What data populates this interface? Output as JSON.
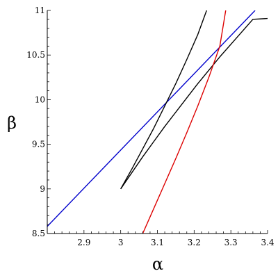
{
  "chart_data": {
    "type": "line",
    "xlabel": "α",
    "ylabel": "β",
    "xlim": [
      2.8,
      3.4
    ],
    "ylim": [
      8.5,
      11
    ],
    "grid": false,
    "x_ticks": [
      2.9,
      3.0,
      3.1,
      3.2,
      3.3,
      3.4
    ],
    "x_tick_labels": [
      "2.9",
      "3",
      "3.1",
      "3.2",
      "3.3",
      "3.4"
    ],
    "y_ticks": [
      8.5,
      9,
      9.5,
      10,
      10.5,
      11
    ],
    "y_tick_labels": [
      "8.5",
      "9",
      "9.5",
      "10",
      "10.5",
      "11"
    ],
    "series": [
      {
        "color": "#0000cc",
        "x": [
          2.8,
          3.366
        ],
        "y": [
          8.58,
          11.0
        ]
      },
      {
        "color": "#000000",
        "x": [
          3.0,
          3.03,
          3.06,
          3.09,
          3.12,
          3.15,
          3.18,
          3.21,
          3.24,
          3.27,
          3.3,
          3.33,
          3.36,
          3.4
        ],
        "y": [
          9.0,
          9.18,
          9.36,
          9.53,
          9.7,
          9.86,
          10.02,
          10.18,
          10.33,
          10.48,
          10.62,
          10.76,
          10.9,
          10.91
        ]
      },
      {
        "color": "#000000",
        "x": [
          3.0,
          3.03,
          3.06,
          3.09,
          3.12,
          3.15,
          3.18,
          3.21,
          3.234
        ],
        "y": [
          9.0,
          9.22,
          9.45,
          9.68,
          9.93,
          10.18,
          10.45,
          10.73,
          11.0
        ]
      },
      {
        "color": "#dd0000",
        "x": [
          3.06,
          3.09,
          3.12,
          3.15,
          3.18,
          3.21,
          3.24,
          3.27,
          3.286
        ],
        "y": [
          8.5,
          8.78,
          9.06,
          9.34,
          9.63,
          9.93,
          10.25,
          10.6,
          11.0
        ]
      }
    ]
  }
}
